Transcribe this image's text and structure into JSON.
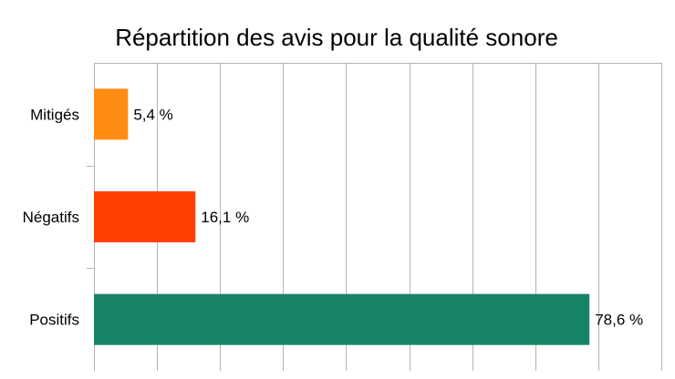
{
  "chart_data": {
    "type": "bar",
    "orientation": "horizontal",
    "title": "Répartition des avis pour la qualité sonore",
    "categories": [
      "Mitigés",
      "Négatifs",
      "Positifs"
    ],
    "values": [
      5.4,
      16.1,
      78.6
    ],
    "value_labels": [
      "5,4 %",
      "16,1 %",
      "78,6 %"
    ],
    "colors": [
      "#ff8c12",
      "#ff4000",
      "#17846a"
    ],
    "xlim": [
      0,
      90
    ],
    "grid": true,
    "legend": "none"
  }
}
